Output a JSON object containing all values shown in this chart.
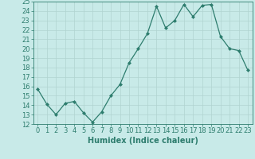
{
  "x": [
    0,
    1,
    2,
    3,
    4,
    5,
    6,
    7,
    8,
    9,
    10,
    11,
    12,
    13,
    14,
    15,
    16,
    17,
    18,
    19,
    20,
    21,
    22,
    23
  ],
  "y": [
    15.7,
    14.1,
    13.0,
    14.2,
    14.4,
    13.2,
    12.2,
    13.3,
    15.0,
    16.2,
    18.5,
    20.0,
    21.6,
    24.5,
    22.2,
    23.0,
    24.7,
    23.4,
    24.6,
    24.7,
    21.3,
    20.0,
    19.8,
    17.7
  ],
  "line_color": "#2e7d6e",
  "marker": "D",
  "marker_size": 2,
  "line_width": 0.9,
  "bg_color": "#c8eae8",
  "grid_color": "#b0d4d0",
  "xlabel": "Humidex (Indice chaleur)",
  "xlabel_fontsize": 7,
  "tick_fontsize": 6,
  "ylim": [
    12,
    25
  ],
  "xlim": [
    -0.5,
    23.5
  ],
  "yticks": [
    12,
    13,
    14,
    15,
    16,
    17,
    18,
    19,
    20,
    21,
    22,
    23,
    24,
    25
  ],
  "xticks": [
    0,
    1,
    2,
    3,
    4,
    5,
    6,
    7,
    8,
    9,
    10,
    11,
    12,
    13,
    14,
    15,
    16,
    17,
    18,
    19,
    20,
    21,
    22,
    23
  ]
}
